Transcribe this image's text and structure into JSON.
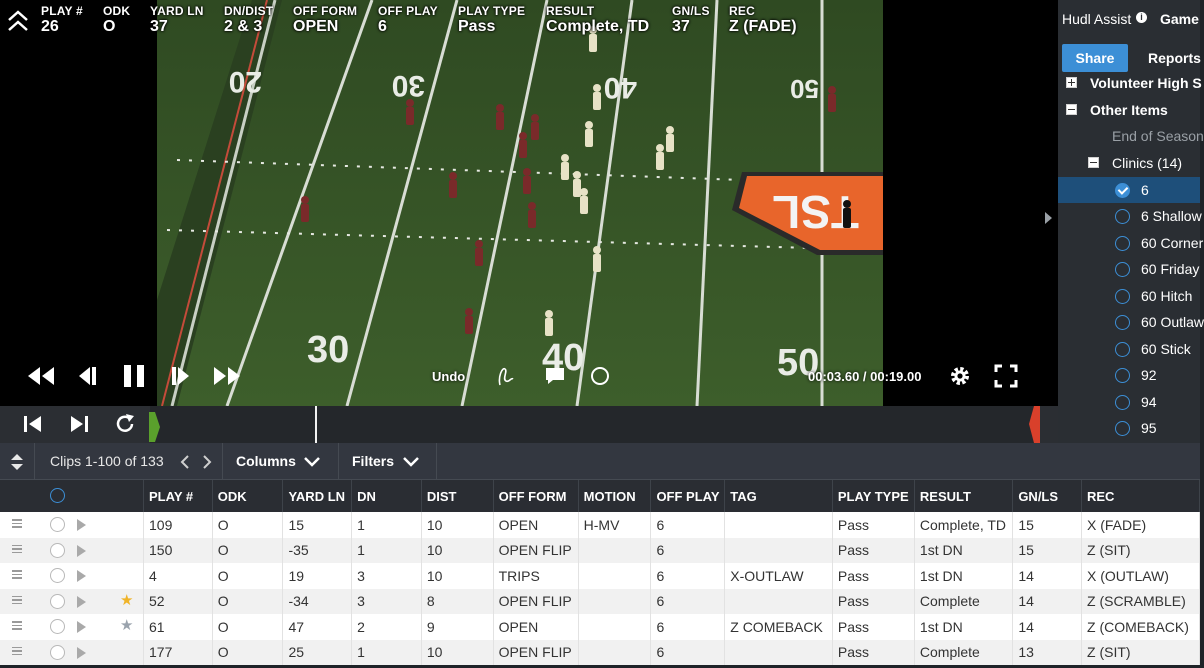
{
  "overlay": {
    "fields": [
      {
        "header": "PLAY #",
        "value": "26"
      },
      {
        "header": "ODK",
        "value": "O"
      },
      {
        "header": "YARD LN",
        "value": "37"
      },
      {
        "header": "DN/DIST",
        "value": "2 & 3"
      },
      {
        "header": "OFF FORM",
        "value": "OPEN"
      },
      {
        "header": "OFF PLAY",
        "value": "6"
      },
      {
        "header": "PLAY TYPE",
        "value": "Pass"
      },
      {
        "header": "RESULT",
        "value": "Complete, TD"
      },
      {
        "header": "GN/LS",
        "value": "37"
      },
      {
        "header": "REC",
        "value": "Z (FADE)"
      }
    ]
  },
  "field": {
    "yard_numbers": [
      "20",
      "30",
      "40",
      "50",
      "30",
      "40",
      "50"
    ],
    "logo_text": "TSL"
  },
  "player": {
    "undo_label": "Undo",
    "time_readout": "00:03.60 / 00:19.00",
    "icons": [
      "rewind-icon",
      "step-back-icon",
      "pause-icon",
      "step-forward-icon",
      "fast-forward-icon",
      "draw-icon",
      "comment-icon",
      "circle-icon",
      "settings-icon",
      "fullscreen-icon"
    ]
  },
  "timeline": {
    "icons": [
      "skip-start-icon",
      "skip-end-icon",
      "loop-icon"
    ]
  },
  "right_panel": {
    "tab_assist": "Hudl Assist",
    "tab_game": "Game",
    "info_glyph": "i",
    "share_label": "Share",
    "reports_label": "Reports",
    "tree": [
      {
        "label": "Volunteer High S",
        "type": "group",
        "expanded": false
      },
      {
        "label": "Other Items",
        "type": "group",
        "expanded": true
      },
      {
        "label": "End of Season",
        "type": "item-dim"
      },
      {
        "label": "Clinics (14)",
        "type": "subgroup",
        "expanded": true
      },
      {
        "label": "6",
        "type": "clip",
        "checked": true
      },
      {
        "label": "6 Shallow",
        "type": "clip",
        "checked": false
      },
      {
        "label": "60 Corner",
        "type": "clip",
        "checked": false
      },
      {
        "label": "60 Friday",
        "type": "clip",
        "checked": false
      },
      {
        "label": "60 Hitch",
        "type": "clip",
        "checked": false
      },
      {
        "label": "60 Outlaw",
        "type": "clip",
        "checked": false
      },
      {
        "label": "60 Stick",
        "type": "clip",
        "checked": false
      },
      {
        "label": "92",
        "type": "clip",
        "checked": false
      },
      {
        "label": "94",
        "type": "clip",
        "checked": false
      },
      {
        "label": "95",
        "type": "clip",
        "checked": false
      }
    ]
  },
  "clips_toolbar": {
    "clips_label": "Clips 1-100 of 133",
    "columns_label": "Columns",
    "filters_label": "Filters"
  },
  "table": {
    "columns": [
      "PLAY #",
      "ODK",
      "YARD LN",
      "DN",
      "DIST",
      "OFF FORM",
      "MOTION",
      "OFF PLAY",
      "TAG",
      "PLAY TYPE",
      "RESULT",
      "GN/LS",
      "REC"
    ],
    "rows": [
      {
        "star": "",
        "cells": [
          "109",
          "O",
          "15",
          "1",
          "10",
          "OPEN",
          "H-MV",
          "6",
          "",
          "Pass",
          "Complete, TD",
          "15",
          "X (FADE)"
        ]
      },
      {
        "star": "",
        "cells": [
          "150",
          "O",
          "-35",
          "1",
          "10",
          "OPEN FLIP",
          "",
          "6",
          "",
          "Pass",
          "1st DN",
          "15",
          "Z (SIT)"
        ]
      },
      {
        "star": "",
        "cells": [
          "4",
          "O",
          "19",
          "3",
          "10",
          "TRIPS",
          "",
          "6",
          "X-OUTLAW",
          "Pass",
          "1st DN",
          "14",
          "X (OUTLAW)"
        ]
      },
      {
        "star": "gold",
        "cells": [
          "52",
          "O",
          "-34",
          "3",
          "8",
          "OPEN FLIP",
          "",
          "6",
          "",
          "Pass",
          "Complete",
          "14",
          "Z (SCRAMBLE)"
        ]
      },
      {
        "star": "grey",
        "cells": [
          "61",
          "O",
          "47",
          "2",
          "9",
          "OPEN",
          "",
          "6",
          "Z COMEBACK",
          "Pass",
          "1st DN",
          "14",
          "Z (COMEBACK)"
        ]
      },
      {
        "star": "",
        "cells": [
          "177",
          "O",
          "25",
          "1",
          "10",
          "OPEN FLIP",
          "",
          "6",
          "",
          "Pass",
          "Complete",
          "13",
          "Z (SIT)"
        ]
      }
    ]
  },
  "colors": {
    "accent": "#3c8fd6",
    "timeline_start": "#5aa02c",
    "timeline_end": "#d9402b",
    "star_gold": "#f0b429",
    "logo_orange": "#e8652b"
  }
}
